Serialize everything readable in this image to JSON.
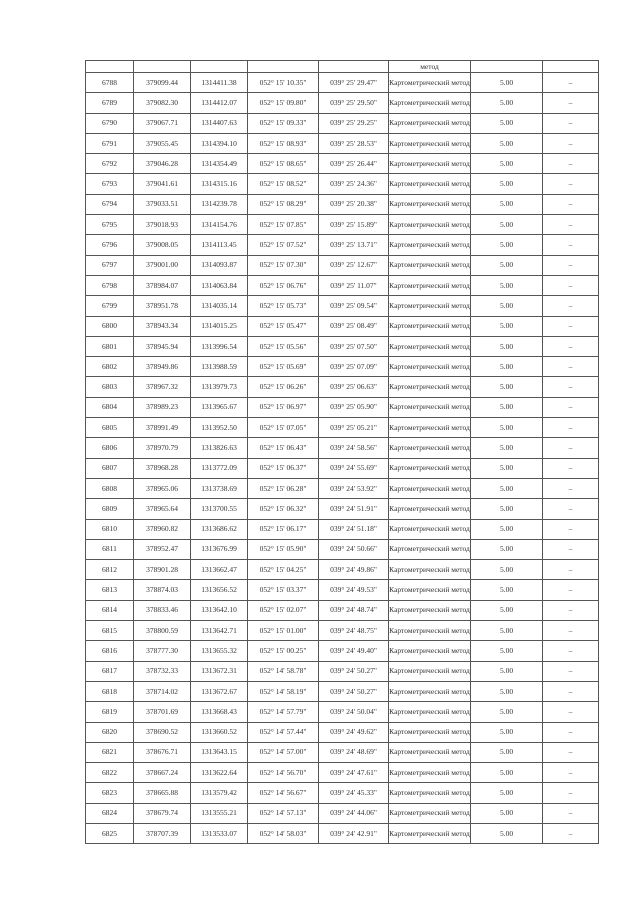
{
  "method_label": "Картометрический метод",
  "method_cont": "метод",
  "rows": [
    [
      "6788",
      "379099.44",
      "1314411.38",
      "052° 15' 10.35\"",
      "039° 25' 29.47\"",
      "5.00",
      "–"
    ],
    [
      "6789",
      "379082.30",
      "1314412.07",
      "052° 15' 09.80\"",
      "039° 25' 29.50\"",
      "5.00",
      "–"
    ],
    [
      "6790",
      "379067.71",
      "1314407.63",
      "052° 15' 09.33\"",
      "039° 25' 29.25\"",
      "5.00",
      "–"
    ],
    [
      "6791",
      "379055.45",
      "1314394.10",
      "052° 15' 08.93\"",
      "039° 25' 28.53\"",
      "5.00",
      "–"
    ],
    [
      "6792",
      "379046.28",
      "1314354.49",
      "052° 15' 08.65\"",
      "039° 25' 26.44\"",
      "5.00",
      "–"
    ],
    [
      "6793",
      "379041.61",
      "1314315.16",
      "052° 15' 08.52\"",
      "039° 25' 24.36\"",
      "5.00",
      "–"
    ],
    [
      "6794",
      "379033.51",
      "1314239.78",
      "052° 15' 08.29\"",
      "039° 25' 20.38\"",
      "5.00",
      "–"
    ],
    [
      "6795",
      "379018.93",
      "1314154.76",
      "052° 15' 07.85\"",
      "039° 25' 15.89\"",
      "5.00",
      "–"
    ],
    [
      "6796",
      "379008.05",
      "1314113.45",
      "052° 15' 07.52\"",
      "039° 25' 13.71\"",
      "5.00",
      "–"
    ],
    [
      "6797",
      "379001.00",
      "1314093.87",
      "052° 15' 07.30\"",
      "039° 25' 12.67\"",
      "5.00",
      "–"
    ],
    [
      "6798",
      "378984.07",
      "1314063.84",
      "052° 15' 06.76\"",
      "039° 25' 11.07\"",
      "5.00",
      "–"
    ],
    [
      "6799",
      "378951.78",
      "1314035.14",
      "052° 15' 05.73\"",
      "039° 25' 09.54\"",
      "5.00",
      "–"
    ],
    [
      "6800",
      "378943.34",
      "1314015.25",
      "052° 15' 05.47\"",
      "039° 25' 08.49\"",
      "5.00",
      "–"
    ],
    [
      "6801",
      "378945.94",
      "1313996.54",
      "052° 15' 05.56\"",
      "039° 25' 07.50\"",
      "5.00",
      "–"
    ],
    [
      "6802",
      "378949.86",
      "1313988.59",
      "052° 15' 05.69\"",
      "039° 25' 07.09\"",
      "5.00",
      "–"
    ],
    [
      "6803",
      "378967.32",
      "1313979.73",
      "052° 15' 06.26\"",
      "039° 25' 06.63\"",
      "5.00",
      "–"
    ],
    [
      "6804",
      "378989.23",
      "1313965.67",
      "052° 15' 06.97\"",
      "039° 25' 05.90\"",
      "5.00",
      "–"
    ],
    [
      "6805",
      "378991.49",
      "1313952.50",
      "052° 15' 07.05\"",
      "039° 25' 05.21\"",
      "5.00",
      "–"
    ],
    [
      "6806",
      "378970.79",
      "1313826.63",
      "052° 15' 06.43\"",
      "039° 24' 58.56\"",
      "5.00",
      "–"
    ],
    [
      "6807",
      "378968.28",
      "1313772.09",
      "052° 15' 06.37\"",
      "039° 24' 55.69\"",
      "5.00",
      "–"
    ],
    [
      "6808",
      "378965.06",
      "1313738.69",
      "052° 15' 06.28\"",
      "039° 24' 53.92\"",
      "5.00",
      "–"
    ],
    [
      "6809",
      "378965.64",
      "1313700.55",
      "052° 15' 06.32\"",
      "039° 24' 51.91\"",
      "5.00",
      "–"
    ],
    [
      "6810",
      "378960.82",
      "1313686.62",
      "052° 15' 06.17\"",
      "039° 24' 51.18\"",
      "5.00",
      "–"
    ],
    [
      "6811",
      "378952.47",
      "1313676.99",
      "052° 15' 05.90\"",
      "039° 24' 50.66\"",
      "5.00",
      "–"
    ],
    [
      "6812",
      "378901.28",
      "1313662.47",
      "052° 15' 04.25\"",
      "039° 24' 49.86\"",
      "5.00",
      "–"
    ],
    [
      "6813",
      "378874.03",
      "1313656.52",
      "052° 15' 03.37\"",
      "039° 24' 49.53\"",
      "5.00",
      "–"
    ],
    [
      "6814",
      "378833.46",
      "1313642.10",
      "052° 15' 02.07\"",
      "039° 24' 48.74\"",
      "5.00",
      "–"
    ],
    [
      "6815",
      "378800.59",
      "1313642.71",
      "052° 15' 01.00\"",
      "039° 24' 48.75\"",
      "5.00",
      "–"
    ],
    [
      "6816",
      "378777.30",
      "1313655.32",
      "052° 15' 00.25\"",
      "039° 24' 49.40\"",
      "5.00",
      "–"
    ],
    [
      "6817",
      "378732.33",
      "1313672.31",
      "052° 14' 58.78\"",
      "039° 24' 50.27\"",
      "5.00",
      "–"
    ],
    [
      "6818",
      "378714.02",
      "1313672.67",
      "052° 14' 58.19\"",
      "039° 24' 50.27\"",
      "5.00",
      "–"
    ],
    [
      "6819",
      "378701.69",
      "1313668.43",
      "052° 14' 57.79\"",
      "039° 24' 50.04\"",
      "5.00",
      "–"
    ],
    [
      "6820",
      "378690.52",
      "1313660.52",
      "052° 14' 57.44\"",
      "039° 24' 49.62\"",
      "5.00",
      "–"
    ],
    [
      "6821",
      "378676.71",
      "1313643.15",
      "052° 14' 57.00\"",
      "039° 24' 48.69\"",
      "5.00",
      "–"
    ],
    [
      "6822",
      "378667.24",
      "1313622.64",
      "052° 14' 56.70\"",
      "039° 24' 47.61\"",
      "5.00",
      "–"
    ],
    [
      "6823",
      "378665.88",
      "1313579.42",
      "052° 14' 56.67\"",
      "039° 24' 45.33\"",
      "5.00",
      "–"
    ],
    [
      "6824",
      "378679.74",
      "1313555.21",
      "052° 14' 57.13\"",
      "039° 24' 44.06\"",
      "5.00",
      "–"
    ],
    [
      "6825",
      "378707.39",
      "1313533.07",
      "052° 14' 58.03\"",
      "039° 24' 42.91\"",
      "5.00",
      "–"
    ]
  ]
}
